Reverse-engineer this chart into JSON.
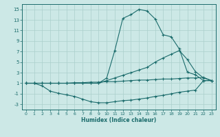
{
  "xlabel": "Humidex (Indice chaleur)",
  "bg_color": "#cce8e6",
  "grid_color": "#aacfcc",
  "line_color": "#1a6b6b",
  "xlim": [
    -0.5,
    23.5
  ],
  "ylim": [
    -4,
    16
  ],
  "xticks": [
    0,
    1,
    2,
    3,
    4,
    5,
    6,
    7,
    8,
    9,
    10,
    11,
    12,
    13,
    14,
    15,
    16,
    17,
    18,
    19,
    20,
    21,
    22,
    23
  ],
  "yticks": [
    -3,
    -1,
    1,
    3,
    5,
    7,
    9,
    11,
    13,
    15
  ],
  "line1_x": [
    0,
    1,
    2,
    3,
    4,
    5,
    6,
    7,
    8,
    9,
    10,
    11,
    12,
    13,
    14,
    15,
    16,
    17,
    18,
    19,
    20,
    21,
    22,
    23
  ],
  "line1_y": [
    1.0,
    1.0,
    1.0,
    1.0,
    1.0,
    1.0,
    1.0,
    1.0,
    1.0,
    1.0,
    2.0,
    7.2,
    13.3,
    14.0,
    15.0,
    14.7,
    13.2,
    10.2,
    9.8,
    7.5,
    3.1,
    2.6,
    1.5,
    1.5
  ],
  "line2_x": [
    0,
    1,
    2,
    3,
    4,
    5,
    6,
    7,
    8,
    9,
    10,
    11,
    12,
    13,
    14,
    15,
    16,
    17,
    18,
    19,
    20,
    21,
    22,
    23
  ],
  "line2_y": [
    1.0,
    1.0,
    1.0,
    1.0,
    1.0,
    1.0,
    1.0,
    1.0,
    1.0,
    1.0,
    1.5,
    2.0,
    2.5,
    3.0,
    3.5,
    4.0,
    5.0,
    5.8,
    6.5,
    7.2,
    5.5,
    3.2,
    2.0,
    1.5
  ],
  "line3_x": [
    0,
    1,
    2,
    3,
    4,
    5,
    6,
    7,
    8,
    9,
    10,
    11,
    12,
    13,
    14,
    15,
    16,
    17,
    18,
    19,
    20,
    21,
    22,
    23
  ],
  "line3_y": [
    1.0,
    1.0,
    1.0,
    1.0,
    1.0,
    1.0,
    1.1,
    1.1,
    1.2,
    1.2,
    1.3,
    1.3,
    1.4,
    1.5,
    1.6,
    1.6,
    1.7,
    1.8,
    1.8,
    1.9,
    2.0,
    2.0,
    2.1,
    1.5
  ],
  "line4_x": [
    0,
    1,
    2,
    3,
    4,
    5,
    6,
    7,
    8,
    9,
    10,
    11,
    12,
    13,
    14,
    15,
    16,
    17,
    18,
    19,
    20,
    21,
    22,
    23
  ],
  "line4_y": [
    1.0,
    1.0,
    0.5,
    -0.5,
    -0.9,
    -1.2,
    -1.5,
    -2.0,
    -2.5,
    -2.7,
    -2.7,
    -2.5,
    -2.3,
    -2.2,
    -2.0,
    -1.8,
    -1.5,
    -1.3,
    -1.0,
    -0.7,
    -0.5,
    -0.3,
    1.5,
    1.5
  ]
}
